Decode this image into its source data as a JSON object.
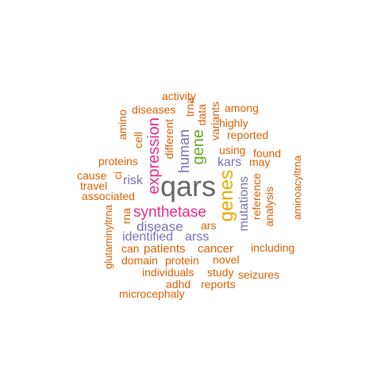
{
  "words": {
    "qars": "qars",
    "genes": "genes",
    "expression": "expression",
    "synthetase": "synthetase",
    "gene": "gene",
    "human": "human",
    "mutations": "mutations",
    "disease": "disease",
    "identified": "identified",
    "arss": "arss",
    "patients": "patients",
    "cancer": "cancer",
    "risk": "risk",
    "kars": "kars",
    "activity": "activity",
    "diseases": "diseases",
    "among": "among",
    "trna": "trna",
    "data": "data",
    "variants": "variants",
    "highly": "highly",
    "reported": "reported",
    "amino": "amino",
    "cell": "cell",
    "different": "different",
    "using": "using",
    "found": "found",
    "may": "may",
    "proteins": "proteins",
    "cause": "cause",
    "travel": "travel",
    "ci": "ci",
    "associated": "associated",
    "reference": "reference",
    "analysis": "analysis",
    "aminoacyltrna": "aminoacyltrna",
    "rna": "rna",
    "ars": "ars",
    "glutaminyltrna": "glutaminyltrna",
    "can": "can",
    "including": "including",
    "domain": "domain",
    "protein": "protein",
    "novel": "novel",
    "individuals": "individuals",
    "study": "study",
    "seizures": "seizures",
    "adhd": "adhd",
    "reports": "reports",
    "microcephaly": "microcephaly"
  },
  "colors": {
    "orange": "#d95f02",
    "purple": "#7570b3",
    "magenta": "#e7298a",
    "green": "#66a61e",
    "gold": "#e6ab02",
    "gray": "#666666"
  }
}
